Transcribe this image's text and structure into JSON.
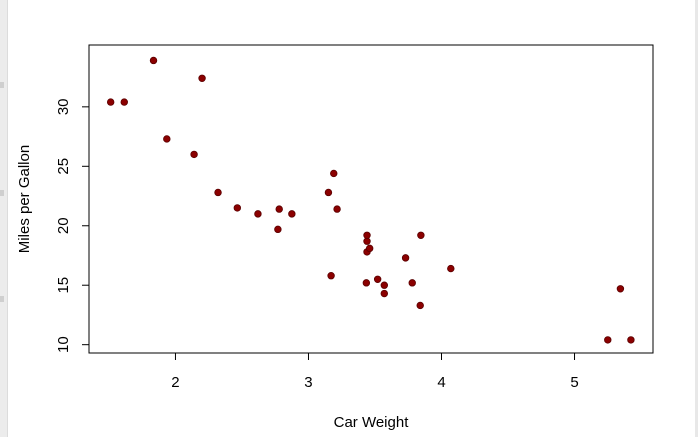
{
  "chart_data": {
    "type": "scatter",
    "title": "",
    "xlabel": "Car Weight",
    "ylabel": "Miles per Gallon",
    "xlim": [
      1.35,
      5.59
    ],
    "ylim": [
      9.3,
      35.2
    ],
    "xticks": [
      2,
      3,
      4,
      5
    ],
    "yticks": [
      10,
      15,
      20,
      25,
      30
    ],
    "grid": false,
    "point_color": "#8b0000",
    "points": [
      {
        "x": 1.513,
        "y": 30.4
      },
      {
        "x": 1.615,
        "y": 30.4
      },
      {
        "x": 1.835,
        "y": 33.9
      },
      {
        "x": 1.935,
        "y": 27.3
      },
      {
        "x": 2.14,
        "y": 26.0
      },
      {
        "x": 2.2,
        "y": 32.4
      },
      {
        "x": 2.32,
        "y": 22.8
      },
      {
        "x": 2.465,
        "y": 21.5
      },
      {
        "x": 2.62,
        "y": 21.0
      },
      {
        "x": 2.77,
        "y": 19.7
      },
      {
        "x": 2.78,
        "y": 21.4
      },
      {
        "x": 2.875,
        "y": 21.0
      },
      {
        "x": 3.15,
        "y": 22.8
      },
      {
        "x": 3.17,
        "y": 15.8
      },
      {
        "x": 3.19,
        "y": 24.4
      },
      {
        "x": 3.215,
        "y": 21.4
      },
      {
        "x": 3.435,
        "y": 15.2
      },
      {
        "x": 3.44,
        "y": 18.7
      },
      {
        "x": 3.44,
        "y": 19.2
      },
      {
        "x": 3.44,
        "y": 17.8
      },
      {
        "x": 3.46,
        "y": 18.1
      },
      {
        "x": 3.52,
        "y": 15.5
      },
      {
        "x": 3.57,
        "y": 14.3
      },
      {
        "x": 3.57,
        "y": 15.0
      },
      {
        "x": 3.73,
        "y": 17.3
      },
      {
        "x": 3.78,
        "y": 15.2
      },
      {
        "x": 3.84,
        "y": 13.3
      },
      {
        "x": 3.845,
        "y": 19.2
      },
      {
        "x": 4.07,
        "y": 16.4
      },
      {
        "x": 5.25,
        "y": 10.4
      },
      {
        "x": 5.345,
        "y": 14.7
      },
      {
        "x": 5.424,
        "y": 10.4
      }
    ]
  }
}
